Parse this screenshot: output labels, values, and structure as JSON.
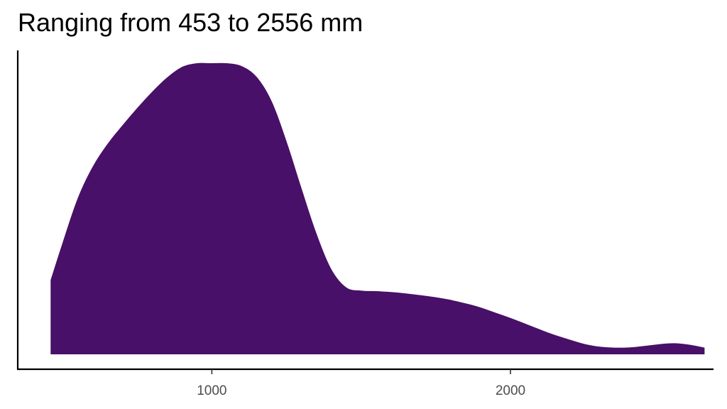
{
  "chart_data": {
    "type": "area",
    "title": "Ranging from 453 to 2556 mm",
    "xlabel": "",
    "ylabel": "",
    "xlim": [
      350,
      2680
    ],
    "ylim": [
      0,
      1.05
    ],
    "x_ticks": [
      1000,
      2000
    ],
    "x_tick_labels": [
      "1000",
      "2000"
    ],
    "y_axis_ticks": false,
    "grid": false,
    "legend": "none",
    "fill_color": "#481068",
    "series": [
      {
        "x": [
          460,
          500,
          550,
          600,
          650,
          700,
          750,
          800,
          850,
          900,
          950,
          1000,
          1050,
          1100,
          1150,
          1200,
          1250,
          1300,
          1350,
          1400,
          1450,
          1500,
          1550,
          1600,
          1650,
          1700,
          1750,
          1800,
          1850,
          1900,
          1950,
          2000,
          2050,
          2100,
          2150,
          2200,
          2250,
          2300,
          2350,
          2400,
          2450,
          2500,
          2550,
          2600,
          2650
        ],
        "y": [
          0.255,
          0.383,
          0.534,
          0.643,
          0.722,
          0.786,
          0.846,
          0.902,
          0.951,
          0.987,
          1.0,
          1.0,
          1.0,
          0.99,
          0.953,
          0.87,
          0.732,
          0.571,
          0.416,
          0.293,
          0.23,
          0.219,
          0.217,
          0.214,
          0.209,
          0.203,
          0.196,
          0.187,
          0.175,
          0.161,
          0.143,
          0.125,
          0.105,
          0.085,
          0.066,
          0.05,
          0.035,
          0.026,
          0.023,
          0.024,
          0.029,
          0.035,
          0.038,
          0.033,
          0.023
        ]
      }
    ]
  }
}
